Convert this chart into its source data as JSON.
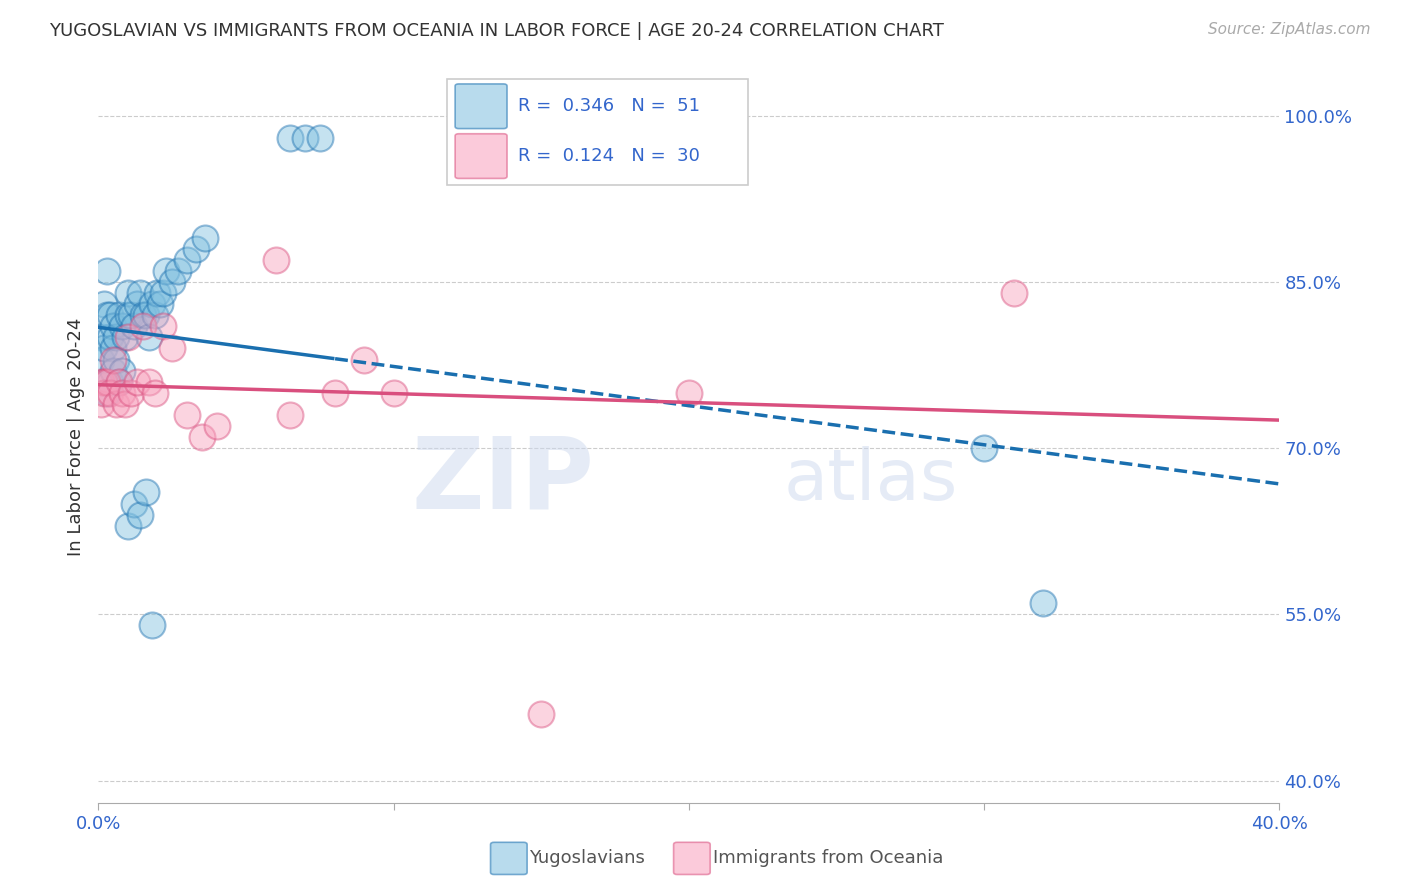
{
  "title": "YUGOSLAVIAN VS IMMIGRANTS FROM OCEANIA IN LABOR FORCE | AGE 20-24 CORRELATION CHART",
  "source": "Source: ZipAtlas.com",
  "ylabel": "In Labor Force | Age 20-24",
  "yticks": [
    0.4,
    0.55,
    0.7,
    0.85,
    1.0
  ],
  "ytick_labels": [
    "40.0%",
    "55.0%",
    "70.0%",
    "85.0%",
    "100.0%"
  ],
  "xmin": 0.0,
  "xmax": 0.4,
  "ymin": 0.38,
  "ymax": 1.04,
  "blue_R": 0.346,
  "blue_N": 51,
  "pink_R": 0.124,
  "pink_N": 30,
  "blue_color": "#7fbfdf",
  "blue_line_color": "#1a6faf",
  "pink_color": "#f8a0bc",
  "pink_line_color": "#d94f7e",
  "legend_label_blue": "Yugoslavians",
  "legend_label_pink": "Immigrants from Oceania",
  "watermark_zip": "ZIP",
  "watermark_atlas": "atlas",
  "blue_scatter_x": [
    0.001,
    0.001,
    0.002,
    0.002,
    0.003,
    0.003,
    0.004,
    0.004,
    0.005,
    0.005,
    0.006,
    0.007,
    0.008,
    0.009,
    0.01,
    0.01,
    0.011,
    0.012,
    0.013,
    0.014,
    0.015,
    0.016,
    0.017,
    0.018,
    0.019,
    0.02,
    0.021,
    0.022,
    0.023,
    0.025,
    0.027,
    0.03,
    0.033,
    0.036,
    0.065,
    0.07,
    0.075,
    0.002,
    0.003,
    0.004,
    0.005,
    0.006,
    0.007,
    0.008,
    0.01,
    0.012,
    0.014,
    0.016,
    0.018,
    0.3,
    0.32
  ],
  "blue_scatter_y": [
    0.8,
    0.78,
    0.79,
    0.83,
    0.82,
    0.86,
    0.8,
    0.82,
    0.81,
    0.79,
    0.8,
    0.82,
    0.81,
    0.8,
    0.82,
    0.84,
    0.82,
    0.81,
    0.83,
    0.84,
    0.82,
    0.82,
    0.8,
    0.83,
    0.82,
    0.84,
    0.83,
    0.84,
    0.86,
    0.85,
    0.86,
    0.87,
    0.88,
    0.89,
    0.98,
    0.98,
    0.98,
    0.76,
    0.75,
    0.76,
    0.77,
    0.78,
    0.76,
    0.77,
    0.63,
    0.65,
    0.64,
    0.66,
    0.54,
    0.7,
    0.56
  ],
  "pink_scatter_x": [
    0.001,
    0.001,
    0.002,
    0.002,
    0.003,
    0.004,
    0.005,
    0.006,
    0.007,
    0.008,
    0.009,
    0.01,
    0.011,
    0.013,
    0.015,
    0.017,
    0.019,
    0.022,
    0.025,
    0.03,
    0.035,
    0.04,
    0.06,
    0.065,
    0.08,
    0.09,
    0.1,
    0.15,
    0.2,
    0.31
  ],
  "pink_scatter_y": [
    0.76,
    0.74,
    0.76,
    0.75,
    0.76,
    0.75,
    0.78,
    0.74,
    0.76,
    0.75,
    0.74,
    0.8,
    0.75,
    0.76,
    0.81,
    0.76,
    0.75,
    0.81,
    0.79,
    0.73,
    0.71,
    0.72,
    0.87,
    0.73,
    0.75,
    0.78,
    0.75,
    0.46,
    0.75,
    0.84
  ]
}
